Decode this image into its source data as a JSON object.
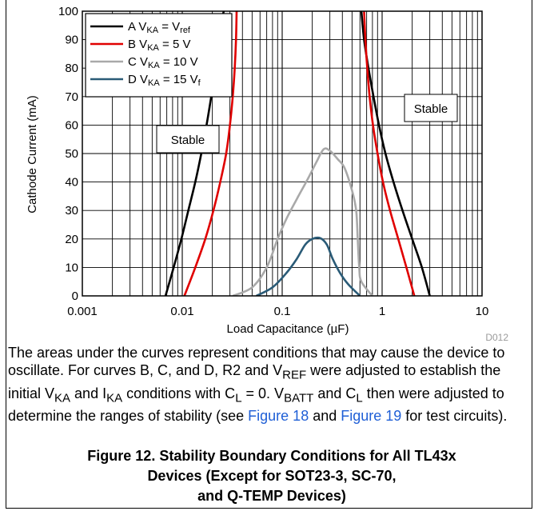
{
  "chart_data": {
    "type": "line",
    "xscale": "log",
    "xlim": [
      0.001,
      10
    ],
    "ylim": [
      0,
      100
    ],
    "xlabel": "Load Capacitance (µF)",
    "ylabel": "Cathode Current (mA)",
    "x_tick_labels": [
      "0.001",
      "0.01",
      "0.1",
      "1",
      "10"
    ],
    "y_tick_labels": [
      "0",
      "10",
      "20",
      "30",
      "40",
      "50",
      "60",
      "70",
      "80",
      "90",
      "100"
    ],
    "grid": true,
    "legend_position": "top-left",
    "annotations": [
      "Stable",
      "Stable",
      "D012"
    ],
    "series": [
      {
        "name": "A V_KA = V_ref",
        "legend": {
          "main": "A V",
          "sub1": "KA",
          "mid": " = V",
          "sub2": "ref"
        },
        "color": "#000000",
        "curves": [
          [
            [
              0.0068,
              0
            ],
            [
              0.0082,
              10
            ],
            [
              0.0098,
              20
            ],
            [
              0.0115,
              30
            ],
            [
              0.0135,
              40
            ],
            [
              0.0155,
              50
            ],
            [
              0.0175,
              60
            ],
            [
              0.0195,
              70
            ],
            [
              0.0215,
              80
            ],
            [
              0.0235,
              90
            ],
            [
              0.025,
              97
            ],
            [
              0.026,
              100
            ]
          ],
          [
            [
              3.0,
              0
            ],
            [
              2.5,
              10
            ],
            [
              2.0,
              20
            ],
            [
              1.6,
              30
            ],
            [
              1.3,
              40
            ],
            [
              1.08,
              50
            ],
            [
              0.93,
              60
            ],
            [
              0.82,
              70
            ],
            [
              0.73,
              80
            ],
            [
              0.66,
              90
            ],
            [
              0.62,
              100
            ]
          ]
        ]
      },
      {
        "name": "B V_KA = 5 V",
        "legend": {
          "main": "B V",
          "sub1": "KA",
          "mid": " = 5 V",
          "sub2": ""
        },
        "color": "#e00000",
        "curves": [
          [
            [
              0.0105,
              0
            ],
            [
              0.0135,
              10
            ],
            [
              0.017,
              20
            ],
            [
              0.0205,
              30
            ],
            [
              0.024,
              40
            ],
            [
              0.0275,
              50
            ],
            [
              0.03,
              60
            ],
            [
              0.032,
              70
            ],
            [
              0.0335,
              80
            ],
            [
              0.0345,
              90
            ],
            [
              0.035,
              100
            ]
          ],
          [
            [
              2.1,
              0
            ],
            [
              1.75,
              10
            ],
            [
              1.45,
              20
            ],
            [
              1.2,
              30
            ],
            [
              1.02,
              40
            ],
            [
              0.9,
              50
            ],
            [
              0.81,
              60
            ],
            [
              0.75,
              70
            ],
            [
              0.71,
              80
            ],
            [
              0.68,
              90
            ],
            [
              0.66,
              100
            ]
          ]
        ]
      },
      {
        "name": "C V_KA = 10 V",
        "legend": {
          "main": "C V",
          "sub1": "KA",
          "mid": " = 10 V",
          "sub2": ""
        },
        "color": "#a9a9a9",
        "curves": [
          [
            [
              0.032,
              0
            ],
            [
              0.05,
              3
            ],
            [
              0.07,
              10
            ],
            [
              0.09,
              20
            ],
            [
              0.11,
              27
            ],
            [
              0.14,
              34
            ],
            [
              0.18,
              41
            ],
            [
              0.22,
              47
            ],
            [
              0.26,
              51.5
            ],
            [
              0.3,
              51
            ],
            [
              0.36,
              48
            ],
            [
              0.42,
              45
            ],
            [
              0.5,
              37
            ],
            [
              0.55,
              30
            ],
            [
              0.57,
              20
            ],
            [
              0.59,
              10
            ],
            [
              0.62,
              5
            ],
            [
              0.8,
              0
            ]
          ]
        ]
      },
      {
        "name": "D V_KA = 15 V",
        "legend": {
          "main": "D V",
          "sub1": "KA",
          "mid": " = 15 V",
          "sub2": "f"
        },
        "color": "#2a5b77",
        "curves": [
          [
            [
              0.055,
              0
            ],
            [
              0.08,
              3
            ],
            [
              0.11,
              8
            ],
            [
              0.14,
              13
            ],
            [
              0.17,
              18
            ],
            [
              0.2,
              20
            ],
            [
              0.24,
              20.3
            ],
            [
              0.28,
              18
            ],
            [
              0.32,
              13
            ],
            [
              0.38,
              8
            ],
            [
              0.46,
              4
            ],
            [
              0.6,
              0
            ]
          ]
        ]
      }
    ]
  },
  "caption": {
    "p1": "The areas under the curves represent conditions that may cause the device to oscillate. For curves B, C, and D, R2 and V",
    "p1_sub": "REF",
    "p2": " were adjusted to establish the initial V",
    "p2_sub": "KA",
    "p3": " and I",
    "p3_sub": "KA",
    "p4": " conditions with C",
    "p4_sub": "L",
    "p5": " = 0. V",
    "p5_sub": "BATT",
    "p6": " and C",
    "p6_sub": "L",
    "p7": " then were adjusted to determine the ranges of stability (see ",
    "link1": "Figure 18",
    "p8": " and ",
    "link2": "Figure 19",
    "p9": " for test circuits)."
  },
  "figure_title": {
    "line1": "Figure 12. Stability Boundary Conditions for All TL43x",
    "line2": "Devices (Except for SOT23-3, SC-70,",
    "line3": "and Q-TEMP Devices)"
  }
}
